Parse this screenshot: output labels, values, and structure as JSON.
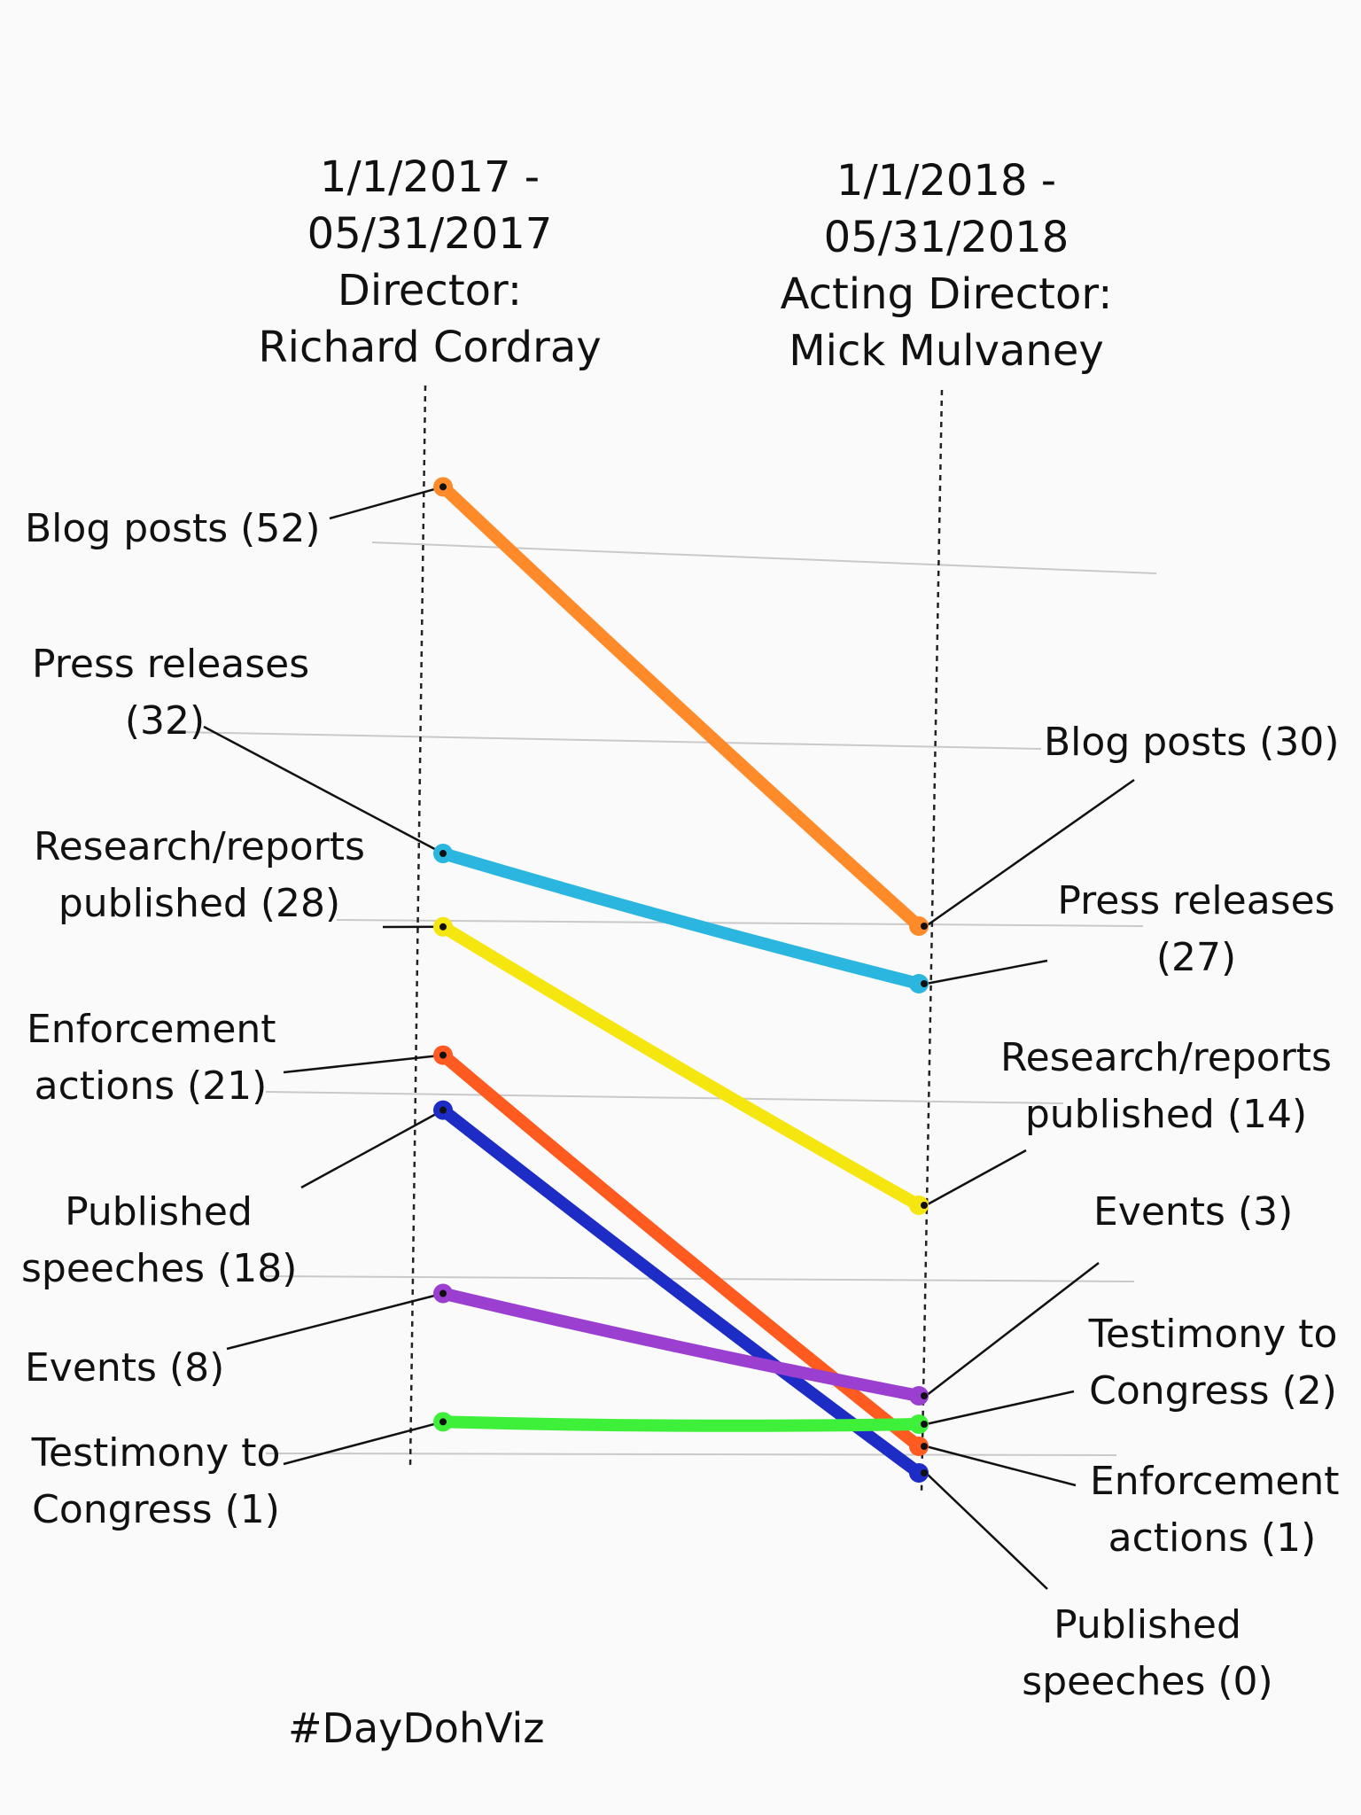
{
  "chart_data": {
    "type": "line",
    "categories": [
      "1/1/2017 - 05/31/2017 Director: Richard Cordray",
      "1/1/2018 - 05/31/2018 Acting Director: Mick Mulvaney"
    ],
    "periods": [
      {
        "lines": [
          "1/1/2017 -",
          "05/31/2017",
          "Director:",
          "Richard Cordray"
        ]
      },
      {
        "lines": [
          "1/1/2018 -",
          "05/31/2018",
          "Acting Director:",
          "Mick Mulvaney"
        ]
      }
    ],
    "series": [
      {
        "name": "Blog posts",
        "color": "#ff8a2a",
        "values": [
          52,
          30
        ],
        "left_label": [
          "Blog posts (52)"
        ],
        "right_label": [
          "Blog posts (30)"
        ]
      },
      {
        "name": "Press releases",
        "color": "#2bb6e0",
        "values": [
          32,
          27
        ],
        "left_label": [
          "Press releases",
          "(32)"
        ],
        "right_label": [
          "Press releases",
          "(27)"
        ]
      },
      {
        "name": "Research/reports published",
        "color": "#f5e610",
        "values": [
          28,
          14
        ],
        "left_label": [
          "Research/reports",
          "published (28)"
        ],
        "right_label": [
          "Research/reports",
          "published (14)"
        ]
      },
      {
        "name": "Enforcement actions",
        "color": "#ff5a1f",
        "values": [
          21,
          1
        ],
        "left_label": [
          "Enforcement",
          "actions (21)"
        ],
        "right_label": [
          "Enforcement",
          "actions (1)"
        ]
      },
      {
        "name": "Published speeches",
        "color": "#1c2cc4",
        "values": [
          18,
          0
        ],
        "left_label": [
          "Published",
          "speeches (18)"
        ],
        "right_label": [
          "Published",
          "speeches (0)"
        ]
      },
      {
        "name": "Events",
        "color": "#9b3fd0",
        "values": [
          8,
          3
        ],
        "left_label": [
          "Events (8)"
        ],
        "right_label": [
          "Events (3)"
        ]
      },
      {
        "name": "Testimony to Congress",
        "color": "#3ef03a",
        "values": [
          1,
          2
        ],
        "left_label": [
          "Testimony to",
          "Congress (1)"
        ],
        "right_label": [
          "Testimony to",
          "Congress (2)"
        ]
      }
    ]
  },
  "footer": {
    "hashtag": "#DayDohViz"
  }
}
